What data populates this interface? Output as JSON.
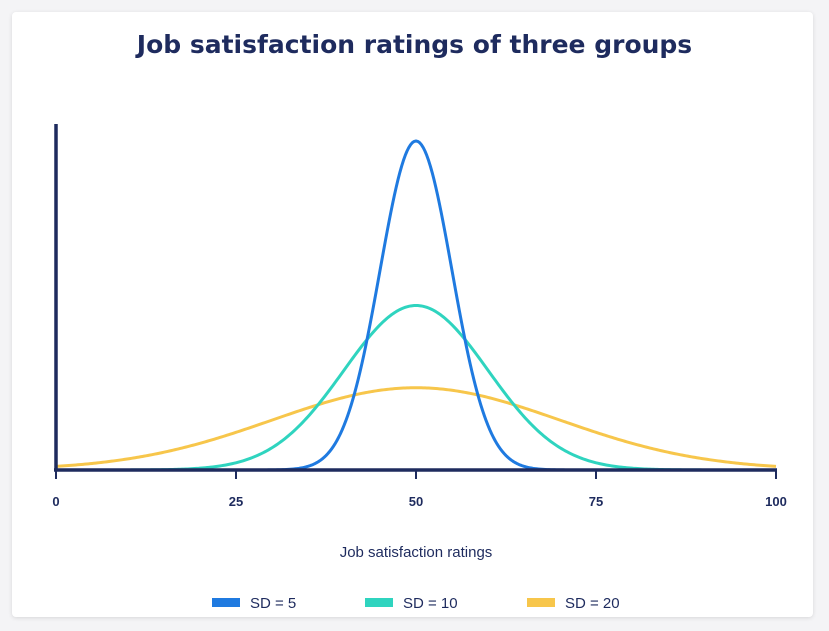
{
  "chart_data": {
    "type": "line",
    "title": "Job satisfaction ratings of three groups",
    "xlabel": "Job satisfaction ratings",
    "ylabel": "",
    "xlim": [
      0,
      100
    ],
    "x_ticks": [
      "0",
      "25",
      "50",
      "75",
      "100"
    ],
    "grid": false,
    "legend_position": "bottom",
    "series": [
      {
        "name": "SD = 5",
        "mean": 50,
        "sd": 5,
        "color": "#1f7ae0"
      },
      {
        "name": "SD = 10",
        "mean": 50,
        "sd": 10,
        "color": "#2fd4bf"
      },
      {
        "name": "SD = 20",
        "mean": 50,
        "sd": 20,
        "color": "#f7c64b"
      }
    ]
  },
  "colors": {
    "axis": "#1e2b5e",
    "text": "#1e2b5e",
    "background": "#ffffff"
  }
}
